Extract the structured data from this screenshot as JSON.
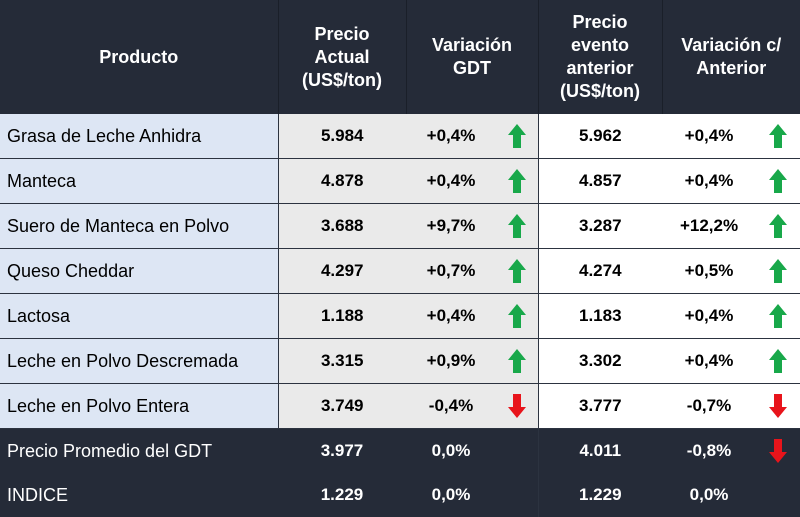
{
  "headers": {
    "producto": "Producto",
    "precio_actual": [
      "Precio",
      "Actual",
      "(US$/ton)"
    ],
    "variacion_gdt": [
      "Variación",
      "GDT"
    ],
    "precio_anterior": [
      "Precio",
      "evento",
      "anterior",
      "(US$/ton)"
    ],
    "variacion_anterior": [
      "Variación c/",
      "Anterior"
    ]
  },
  "rows": [
    {
      "producto": "Grasa de Leche Anhidra",
      "precio": "5.984",
      "var_gdt": "+0,4%",
      "arrow_gdt": "up",
      "precio_ant": "5.962",
      "var_ant": "+0,4%",
      "arrow_ant": "up"
    },
    {
      "producto": "Manteca",
      "precio": "4.878",
      "var_gdt": "+0,4%",
      "arrow_gdt": "up",
      "precio_ant": "4.857",
      "var_ant": "+0,4%",
      "arrow_ant": "up"
    },
    {
      "producto": "Suero de Manteca en Polvo",
      "precio": "3.688",
      "var_gdt": "+9,7%",
      "arrow_gdt": "up",
      "precio_ant": "3.287",
      "var_ant": "+12,2%",
      "arrow_ant": "up"
    },
    {
      "producto": "Queso Cheddar",
      "precio": "4.297",
      "var_gdt": "+0,7%",
      "arrow_gdt": "up",
      "precio_ant": "4.274",
      "var_ant": "+0,5%",
      "arrow_ant": "up"
    },
    {
      "producto": "Lactosa",
      "precio": "1.188",
      "var_gdt": "+0,4%",
      "arrow_gdt": "up",
      "precio_ant": "1.183",
      "var_ant": "+0,4%",
      "arrow_ant": "up"
    },
    {
      "producto": "Leche en Polvo Descremada",
      "precio": "3.315",
      "var_gdt": "+0,9%",
      "arrow_gdt": "up",
      "precio_ant": "3.302",
      "var_ant": "+0,4%",
      "arrow_ant": "up"
    },
    {
      "producto": "Leche en Polvo Entera",
      "precio": "3.749",
      "var_gdt": "-0,4%",
      "arrow_gdt": "down",
      "precio_ant": "3.777",
      "var_ant": "-0,7%",
      "arrow_ant": "down"
    }
  ],
  "footer": [
    {
      "producto": "Precio Promedio del GDT",
      "precio": "3.977",
      "var_gdt": "0,0%",
      "arrow_gdt": "none",
      "precio_ant": "4.011",
      "var_ant": "-0,8%",
      "arrow_ant": "down"
    },
    {
      "producto": "INDICE",
      "precio": "1.229",
      "var_gdt": "0,0%",
      "arrow_gdt": "none",
      "precio_ant": "1.229",
      "var_ant": "0,0%",
      "arrow_ant": "none"
    }
  ],
  "colors": {
    "up": "#18a84a",
    "down": "#e8141b",
    "header_bg": "#252b38",
    "product_bg": "#dde6f4",
    "gray_bg": "#eaeaea"
  }
}
